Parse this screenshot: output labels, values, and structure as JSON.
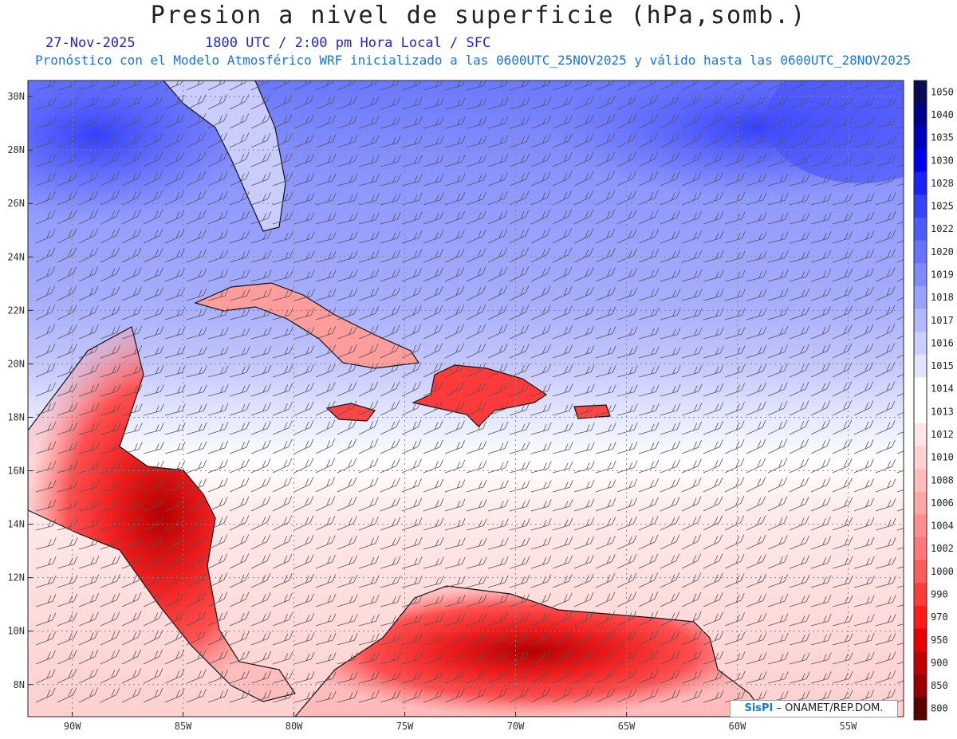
{
  "header": {
    "title": "Presion a nivel de superficie (hPa,somb.)",
    "date": "27-Nov-2025",
    "time_label": "1800 UTC / 2:00 pm Hora Local / SFC",
    "description": "Pronóstico con el Modelo Atmosférico WRF inicializado a las 0600UTC_25NOV2025 y válido hasta las  0600UTC_28NOV2025"
  },
  "map": {
    "projection": "lat-lon",
    "lon_range": [
      -92,
      -52.5
    ],
    "lat_range": [
      6.8,
      30.6
    ],
    "lon_ticks": [
      "90W",
      "85W",
      "80W",
      "75W",
      "70W",
      "65W",
      "60W",
      "55W"
    ],
    "lat_ticks": [
      "30N",
      "28N",
      "26N",
      "24N",
      "22N",
      "20N",
      "18N",
      "16N",
      "14N",
      "12N",
      "10N",
      "8N"
    ],
    "grid": true,
    "wind_barbs": true
  },
  "colorbar": {
    "levels": [
      "1050",
      "1040",
      "1035",
      "1030",
      "1028",
      "1025",
      "1022",
      "1020",
      "1019",
      "1018",
      "1017",
      "1016",
      "1015",
      "1014",
      "1013",
      "1012",
      "1010",
      "1008",
      "1006",
      "1004",
      "1002",
      "1000",
      "990",
      "970",
      "950",
      "900",
      "850",
      "800"
    ],
    "colors": [
      "#0a0a55",
      "#00008a",
      "#0000bf",
      "#0000f0",
      "#1a20ff",
      "#3344ff",
      "#4d5cff",
      "#6674ff",
      "#7f8aff",
      "#9aa2ff",
      "#b3b9ff",
      "#cbceff",
      "#e3e5ff",
      "#ffffff",
      "#ffffff",
      "#ffe6e6",
      "#ffd2d2",
      "#ffbdbd",
      "#ffa6a6",
      "#ff8f8f",
      "#ff7777",
      "#ff5c5c",
      "#ff3c3c",
      "#ff1a1a",
      "#e60000",
      "#c00000",
      "#990000",
      "#5a0000"
    ]
  },
  "credit": {
    "brand": "SisPI",
    "text": "– ONAMET/REP.DOM."
  }
}
